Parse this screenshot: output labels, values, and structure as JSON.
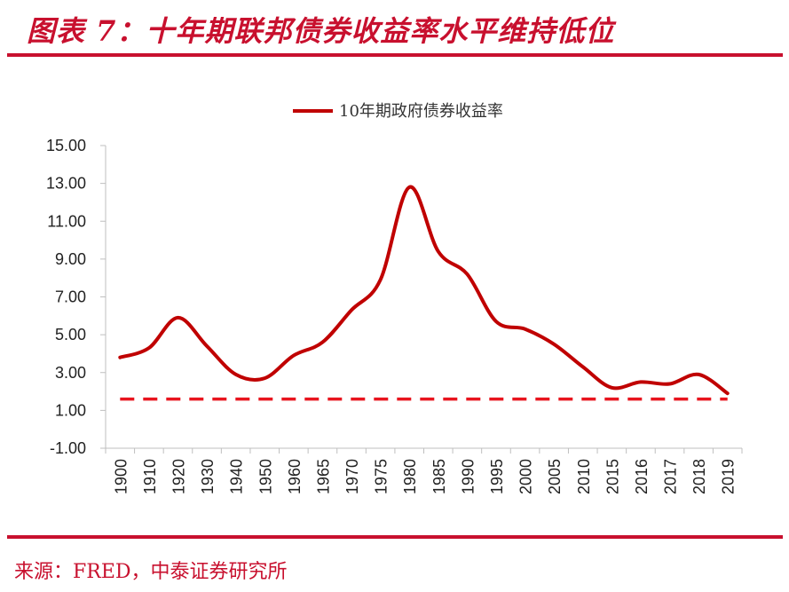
{
  "header": {
    "title": "图表 7：十年期联邦债券收益率水平维持低位"
  },
  "footer": {
    "source": "来源：FRED，中泰证券研究所"
  },
  "colors": {
    "accent": "#c8102e",
    "axis": "#bfbfbf"
  },
  "chart_data": {
    "type": "line",
    "categories": [
      "1900",
      "1910",
      "1920",
      "1930",
      "1940",
      "1950",
      "1960",
      "1965",
      "1970",
      "1975",
      "1980",
      "1985",
      "1990",
      "1995",
      "2000",
      "2005",
      "2010",
      "2015",
      "2016",
      "2017",
      "2018",
      "2019"
    ],
    "series": [
      {
        "name": "10年期政府债券收益率",
        "style": "solid",
        "color": "#c00000",
        "values": [
          3.8,
          4.3,
          5.9,
          4.4,
          2.9,
          2.7,
          3.9,
          4.6,
          6.3,
          7.9,
          12.8,
          9.4,
          8.2,
          5.7,
          5.3,
          4.5,
          3.3,
          2.2,
          2.5,
          2.4,
          2.9,
          1.9
        ]
      }
    ],
    "reference_line": {
      "value": 1.6,
      "style": "dashed",
      "color": "#e8141e"
    },
    "ylim": [
      -1,
      15
    ],
    "yticks": [
      "15.00",
      "13.00",
      "11.00",
      "9.00",
      "7.00",
      "5.00",
      "3.00",
      "1.00",
      "-1.00"
    ],
    "ytick_values": [
      15,
      13,
      11,
      9,
      7,
      5,
      3,
      1,
      -1
    ],
    "legend": {
      "position": "top-center"
    },
    "grid": false,
    "xlabel": "",
    "ylabel": ""
  }
}
